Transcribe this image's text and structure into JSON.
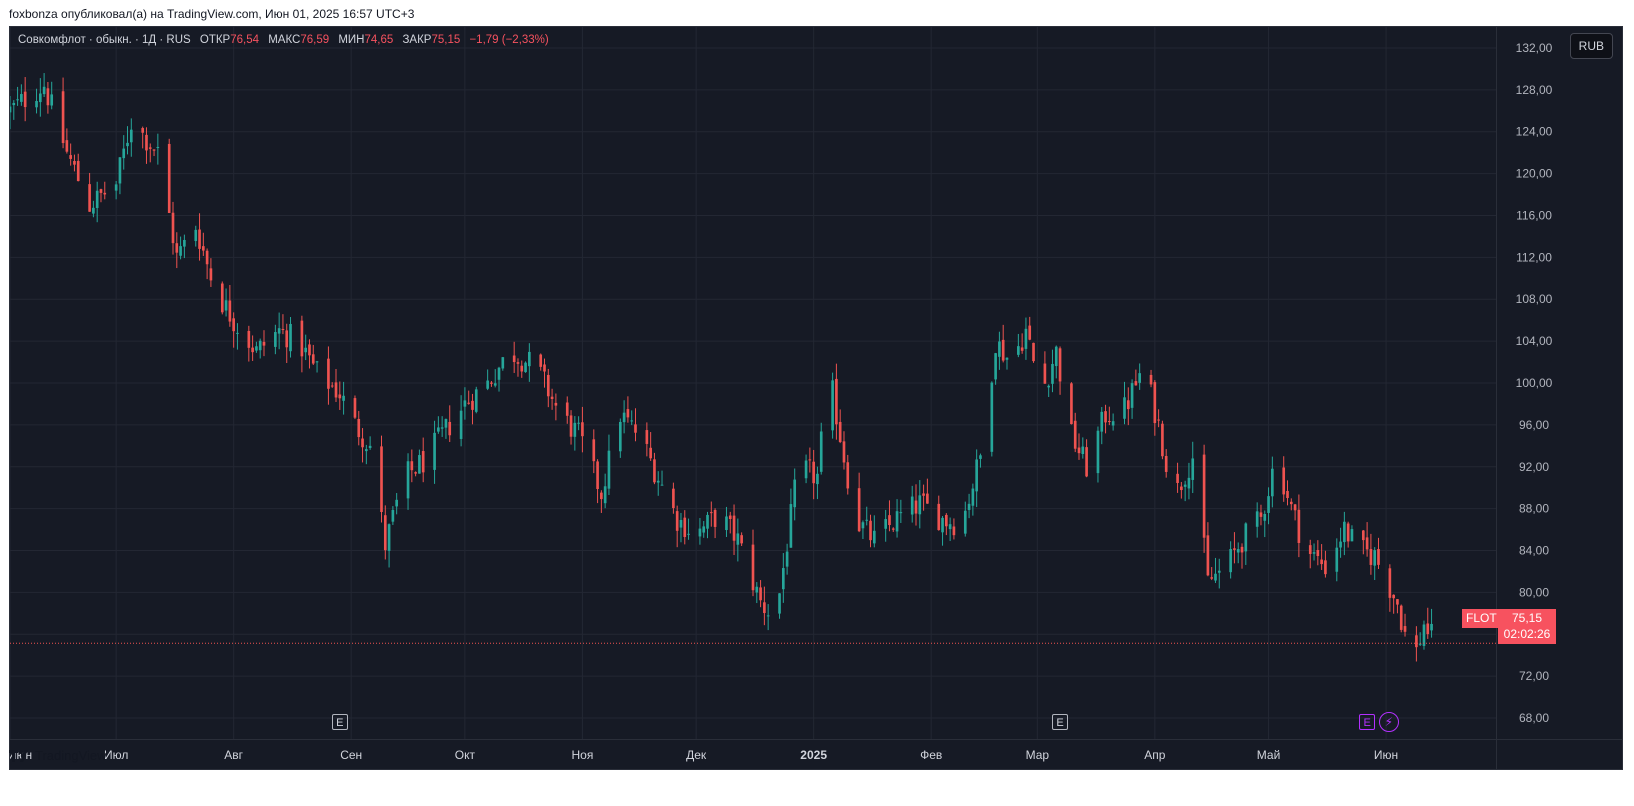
{
  "header": {
    "publish_line": "foxbonza опубликовал(а) на TradingView.com, Июн 01, 2025 16:57 UTC+3"
  },
  "legend": {
    "symbol_line": "Совкомфлот · обыкн. · 1Д · RUS",
    "open_label": "ОТКР",
    "open_value": "76,54",
    "high_label": "МАКС",
    "high_value": "76,59",
    "low_label": "МИН",
    "low_value": "74,65",
    "close_label": "ЗАКР",
    "close_value": "75,15",
    "change_value": "−1,79 (−2,33%)"
  },
  "currency_label": "RUB",
  "last_price": {
    "ticker": "FLOT",
    "price": "75,15",
    "countdown": "02:02:26"
  },
  "events": {
    "earnings_glyph": "E",
    "dividend_icon": "lightning-icon"
  },
  "footer": {
    "brand": "TradingView",
    "logo_icon": "tradingview-logo-icon"
  },
  "colors": {
    "up": "#26a69a",
    "down": "#ef5350",
    "background": "#161a25",
    "grid": "#232733"
  },
  "chart_data": {
    "type": "candlestick",
    "y_range": [
      66,
      134
    ],
    "y_ticks": [
      {
        "v": 132,
        "label": "132,00"
      },
      {
        "v": 128,
        "label": "128,00"
      },
      {
        "v": 124,
        "label": "124,00"
      },
      {
        "v": 120,
        "label": "120,00"
      },
      {
        "v": 116,
        "label": "116,00"
      },
      {
        "v": 112,
        "label": "112,00"
      },
      {
        "v": 108,
        "label": "108,00"
      },
      {
        "v": 104,
        "label": "104,00"
      },
      {
        "v": 100,
        "label": "100,00"
      },
      {
        "v": 96,
        "label": "96,00"
      },
      {
        "v": 92,
        "label": "92,00"
      },
      {
        "v": 88,
        "label": "88,00"
      },
      {
        "v": 84,
        "label": "84,00"
      },
      {
        "v": 80,
        "label": "80,00"
      },
      {
        "v": 76,
        "label": "76,00"
      },
      {
        "v": 72,
        "label": "72,00"
      },
      {
        "v": 68,
        "label": "68,00"
      }
    ],
    "x_ticks": [
      {
        "date": "2024-06-03",
        "label": "Июн"
      },
      {
        "date": "2024-07-01",
        "label": "Июл"
      },
      {
        "date": "2024-08-01",
        "label": "Авг"
      },
      {
        "date": "2024-09-01",
        "label": "Сен"
      },
      {
        "date": "2024-10-01",
        "label": "Окт"
      },
      {
        "date": "2024-11-01",
        "label": "Ноя"
      },
      {
        "date": "2024-12-01",
        "label": "Дек"
      },
      {
        "date": "2025-01-01",
        "label": "2025",
        "bold": true
      },
      {
        "date": "2025-02-01",
        "label": "Фев"
      },
      {
        "date": "2025-03-01",
        "label": "Мар"
      },
      {
        "date": "2025-04-01",
        "label": "Апр"
      },
      {
        "date": "2025-05-01",
        "label": "Май"
      },
      {
        "date": "2025-06-01",
        "label": "Июн"
      }
    ],
    "x_range": [
      "2024-06-03",
      "2025-06-30"
    ],
    "last_close": 75.15,
    "event_dates": [
      {
        "date": "2024-08-29",
        "kind": "E"
      },
      {
        "date": "2025-03-07",
        "kind": "E"
      },
      {
        "date": "2025-05-27",
        "kind": "E"
      },
      {
        "date": "2025-05-28",
        "kind": "D"
      }
    ],
    "anchors": [
      [
        "2024-06-03",
        126
      ],
      [
        "2024-06-12",
        128.5
      ],
      [
        "2024-06-18",
        122
      ],
      [
        "2024-06-24",
        117
      ],
      [
        "2024-07-01",
        119
      ],
      [
        "2024-07-05",
        125
      ],
      [
        "2024-07-12",
        122
      ],
      [
        "2024-07-17",
        112
      ],
      [
        "2024-07-22",
        115
      ],
      [
        "2024-07-27",
        109
      ],
      [
        "2024-08-01",
        106
      ],
      [
        "2024-08-07",
        103
      ],
      [
        "2024-08-13",
        105
      ],
      [
        "2024-08-18",
        104
      ],
      [
        "2024-08-23",
        101
      ],
      [
        "2024-08-29",
        99
      ],
      [
        "2024-09-02",
        96
      ],
      [
        "2024-09-06",
        94
      ],
      [
        "2024-09-10",
        84.5
      ],
      [
        "2024-09-15",
        91
      ],
      [
        "2024-09-20",
        92.5
      ],
      [
        "2024-09-25",
        95
      ],
      [
        "2024-10-01",
        98
      ],
      [
        "2024-10-07",
        100
      ],
      [
        "2024-10-13",
        103
      ],
      [
        "2024-10-20",
        101.5
      ],
      [
        "2024-10-26",
        97
      ],
      [
        "2024-10-31",
        95
      ],
      [
        "2024-11-06",
        89.5
      ],
      [
        "2024-11-11",
        97
      ],
      [
        "2024-11-16",
        95
      ],
      [
        "2024-11-21",
        91
      ],
      [
        "2024-11-26",
        87
      ],
      [
        "2024-12-01",
        85.5
      ],
      [
        "2024-12-07",
        87.5
      ],
      [
        "2024-12-12",
        85
      ],
      [
        "2024-12-18",
        79
      ],
      [
        "2024-12-22",
        77.5
      ],
      [
        "2024-12-28",
        92
      ],
      [
        "2025-01-02",
        91
      ],
      [
        "2025-01-05",
        101
      ],
      [
        "2025-01-08",
        95
      ],
      [
        "2025-01-12",
        87
      ],
      [
        "2025-01-17",
        85
      ],
      [
        "2025-01-23",
        87
      ],
      [
        "2025-01-29",
        88.5
      ],
      [
        "2025-02-04",
        87
      ],
      [
        "2025-02-09",
        86.5
      ],
      [
        "2025-02-14",
        93
      ],
      [
        "2025-02-18",
        104
      ],
      [
        "2025-02-22",
        102
      ],
      [
        "2025-02-26",
        105
      ],
      [
        "2025-03-02",
        99
      ],
      [
        "2025-03-06",
        103
      ],
      [
        "2025-03-10",
        95
      ],
      [
        "2025-03-14",
        92
      ],
      [
        "2025-03-19",
        97
      ],
      [
        "2025-03-24",
        97.5
      ],
      [
        "2025-03-29",
        101.5
      ],
      [
        "2025-04-02",
        96
      ],
      [
        "2025-04-06",
        89
      ],
      [
        "2025-04-11",
        93
      ],
      [
        "2025-04-15",
        81
      ],
      [
        "2025-04-20",
        82.5
      ],
      [
        "2025-04-24",
        85
      ],
      [
        "2025-04-29",
        87
      ],
      [
        "2025-05-03",
        93
      ],
      [
        "2025-05-07",
        88
      ],
      [
        "2025-05-11",
        84
      ],
      [
        "2025-05-16",
        82.5
      ],
      [
        "2025-05-21",
        86
      ],
      [
        "2025-05-25",
        84
      ],
      [
        "2025-05-29",
        83.5
      ],
      [
        "2025-06-04",
        79
      ],
      [
        "2025-06-08",
        73
      ],
      [
        "2025-06-11",
        77
      ],
      [
        "2025-06-14",
        75.15
      ]
    ]
  }
}
